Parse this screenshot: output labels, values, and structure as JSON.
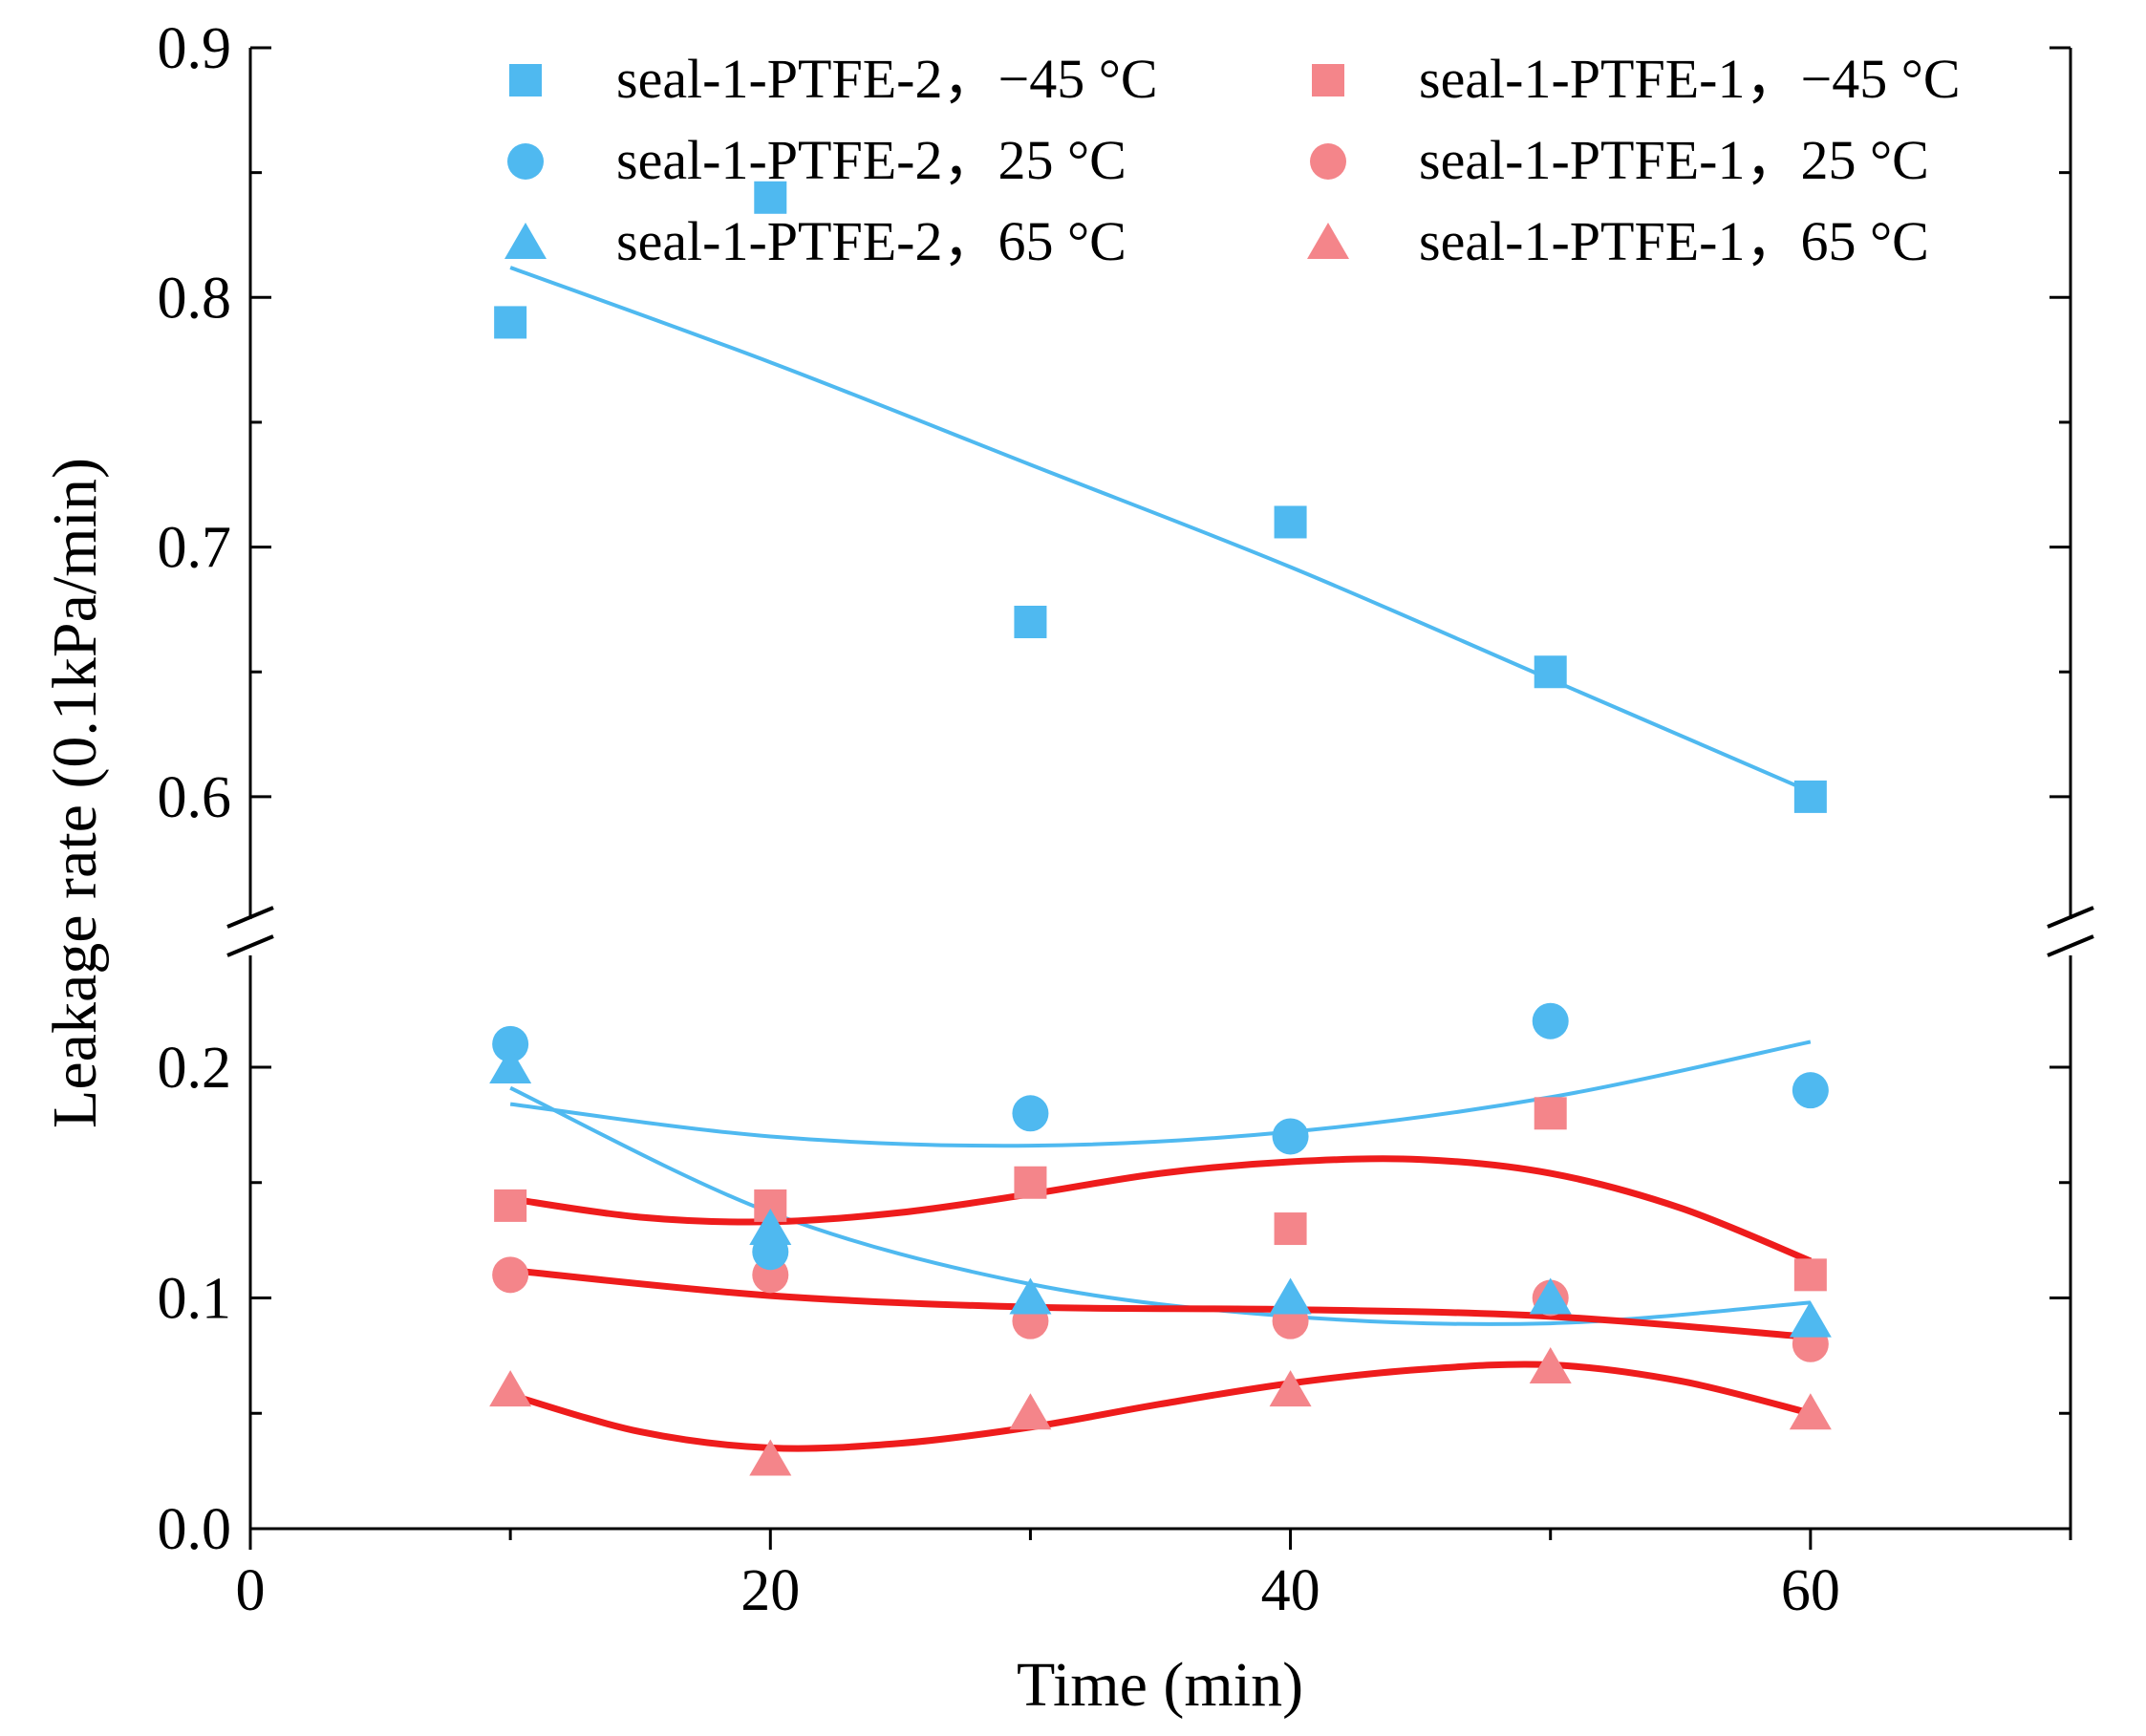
{
  "chart_data": {
    "type": "scatter",
    "title": "",
    "xlabel": "Time (min)",
    "ylabel": "Leakage rate (0.1kPa/min)",
    "xlim": [
      0,
      70
    ],
    "ylim_upper": [
      0.55,
      0.9
    ],
    "ylim_lower": [
      0.0,
      0.25
    ],
    "broken_y_axis": true,
    "x_ticks": [
      0,
      20,
      40,
      60
    ],
    "x_tick_labels": [
      "0",
      "20",
      "40",
      "60"
    ],
    "y_ticks_upper": [
      0.6,
      0.7,
      0.8,
      0.9
    ],
    "y_tick_labels_upper": [
      "0.6",
      "0.7",
      "0.8",
      "0.9"
    ],
    "y_ticks_lower": [
      0.0,
      0.1,
      0.2
    ],
    "y_tick_labels_lower": [
      "0.0",
      "0.1",
      "0.2"
    ],
    "legend_position": "top",
    "colors": {
      "ptfe2": "#4fb9f0",
      "ptfe1_marker": "#f4858a",
      "ptfe1_fit": "#ee1c1c"
    },
    "series": [
      {
        "name": "seal-1-PTFE-2，−45 °C",
        "marker": "square",
        "group": "ptfe2",
        "x": [
          10,
          20,
          30,
          40,
          50,
          60
        ],
        "y": [
          0.79,
          0.84,
          0.67,
          0.71,
          0.65,
          0.6
        ],
        "fit": {
          "x": [
            10,
            20,
            30,
            40,
            50,
            60
          ],
          "y": [
            0.812,
            0.774,
            0.733,
            0.692,
            0.647,
            0.602
          ]
        }
      },
      {
        "name": "seal-1-PTFE-2，25 °C",
        "marker": "circle",
        "group": "ptfe2",
        "x": [
          10,
          20,
          30,
          40,
          50,
          60
        ],
        "y": [
          0.21,
          0.12,
          0.18,
          0.17,
          0.22,
          0.19
        ],
        "fit": {
          "x": [
            10,
            20,
            30,
            40,
            50,
            60
          ],
          "y": [
            0.184,
            0.17,
            0.166,
            0.172,
            0.187,
            0.211
          ]
        }
      },
      {
        "name": "seal-1-PTFE-2，65 °C",
        "marker": "triangle",
        "group": "ptfe2",
        "x": [
          10,
          20,
          30,
          40,
          50,
          60
        ],
        "y": [
          0.2,
          0.13,
          0.1,
          0.1,
          0.1,
          0.09
        ],
        "fit": {
          "x": [
            10,
            20,
            30,
            40,
            50,
            60
          ],
          "y": [
            0.191,
            0.137,
            0.106,
            0.092,
            0.089,
            0.098
          ]
        }
      },
      {
        "name": "seal-1-PTFE-1，−45 °C",
        "marker": "square",
        "group": "ptfe1",
        "x": [
          10,
          20,
          30,
          40,
          50,
          60
        ],
        "y": [
          0.14,
          0.14,
          0.15,
          0.13,
          0.18,
          0.11
        ],
        "fit": {
          "x": [
            10,
            15,
            20,
            25,
            30,
            35,
            40,
            45,
            50,
            55,
            60
          ],
          "y": [
            0.143,
            0.135,
            0.133,
            0.137,
            0.145,
            0.154,
            0.159,
            0.16,
            0.154,
            0.139,
            0.116
          ]
        }
      },
      {
        "name": "seal-1-PTFE-1，25 °C",
        "marker": "circle",
        "group": "ptfe1",
        "x": [
          10,
          20,
          30,
          40,
          50,
          60
        ],
        "y": [
          0.11,
          0.11,
          0.09,
          0.09,
          0.1,
          0.08
        ],
        "fit": {
          "x": [
            10,
            20,
            30,
            40,
            50,
            60
          ],
          "y": [
            0.112,
            0.101,
            0.096,
            0.095,
            0.092,
            0.083
          ]
        }
      },
      {
        "name": "seal-1-PTFE-1，65 °C",
        "marker": "triangle",
        "group": "ptfe1",
        "x": [
          10,
          20,
          30,
          40,
          50,
          60
        ],
        "y": [
          0.06,
          0.03,
          0.05,
          0.06,
          0.07,
          0.05
        ],
        "fit": {
          "x": [
            10,
            15,
            20,
            25,
            30,
            35,
            40,
            45,
            50,
            55,
            60
          ],
          "y": [
            0.058,
            0.042,
            0.035,
            0.037,
            0.044,
            0.054,
            0.063,
            0.069,
            0.071,
            0.064,
            0.05
          ]
        }
      }
    ]
  }
}
